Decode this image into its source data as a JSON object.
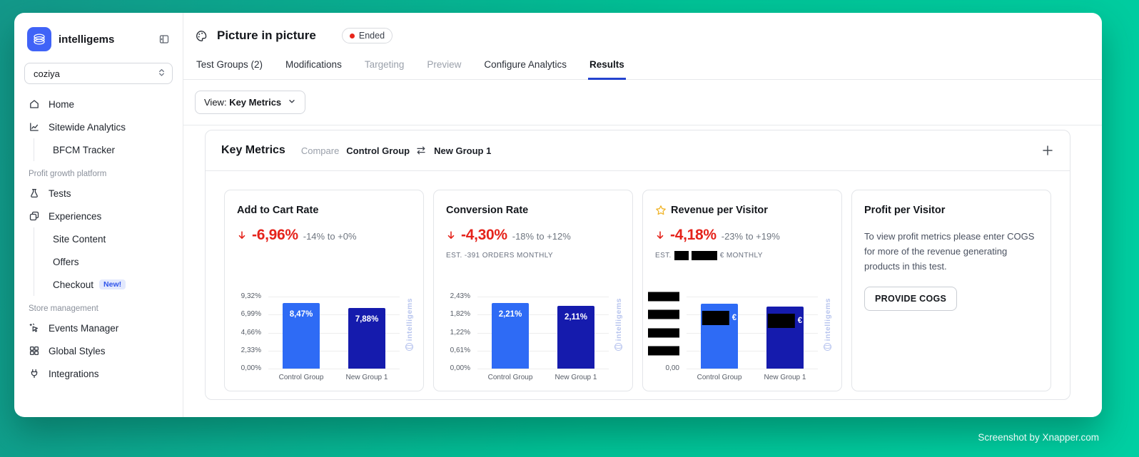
{
  "sidebar": {
    "brand": "intelligems",
    "logo_icon": "intelligems-gem-icon",
    "collapse_icon": "panel-collapse-icon",
    "store_selector": {
      "value": "coziya",
      "icon": "updown-chevron-icon"
    },
    "section_labels": {
      "profit": "Profit growth platform",
      "store": "Store management"
    },
    "nav": [
      {
        "label": "Home",
        "icon": "home-icon"
      },
      {
        "label": "Sitewide Analytics",
        "icon": "analytics-icon"
      },
      {
        "label": "BFCM Tracker"
      },
      {
        "label": "Tests",
        "icon": "flask-icon"
      },
      {
        "label": "Experiences",
        "icon": "devices-icon"
      },
      {
        "label": "Site Content"
      },
      {
        "label": "Offers"
      },
      {
        "label": "Checkout",
        "badge": "New!"
      },
      {
        "label": "Events Manager",
        "icon": "magic-cursor-icon"
      },
      {
        "label": "Global Styles",
        "icon": "grid-icon"
      },
      {
        "label": "Integrations",
        "icon": "plug-icon"
      }
    ]
  },
  "header": {
    "title": "Picture in picture",
    "icon": "palette-icon",
    "status_badge": "Ended"
  },
  "tabs": [
    {
      "label": "Test Groups (2)",
      "muted": false,
      "active": false
    },
    {
      "label": "Modifications",
      "muted": false,
      "active": false
    },
    {
      "label": "Targeting",
      "muted": true,
      "active": false
    },
    {
      "label": "Preview",
      "muted": true,
      "active": false
    },
    {
      "label": "Configure Analytics",
      "muted": false,
      "active": false
    },
    {
      "label": "Results",
      "muted": false,
      "active": true
    }
  ],
  "toolbar": {
    "view_label": "View:",
    "view_value": "Key Metrics",
    "icon": "chevron-down-icon"
  },
  "panel": {
    "title": "Key Metrics",
    "compare_label": "Compare",
    "group_a": "Control Group",
    "group_b": "New Group 1",
    "swap_icon": "swap-arrows-icon",
    "add_icon": "plus-icon"
  },
  "cards": [
    {
      "title": "Add to Cart Rate",
      "delta": "-6,96%",
      "range": "-14% to +0%",
      "est": ""
    },
    {
      "title": "Conversion Rate",
      "delta": "-4,30%",
      "range": "-18% to +12%",
      "est": "EST. -391 ORDERS MONTHLY"
    },
    {
      "title": "Revenue per Visitor",
      "delta": "-4,18%",
      "range": "-23% to +19%",
      "starred": true,
      "est_prefix": "EST.",
      "est_suffix": "€ MONTHLY",
      "est_redacted": true
    },
    {
      "title": "Profit per Visitor",
      "body": "To view profit metrics please enter COGS for more of the revenue generating products in this test.",
      "button_label": "PROVIDE COGS"
    }
  ],
  "chart_data": [
    {
      "type": "bar",
      "title": "Add to Cart Rate",
      "categories": [
        "Control Group",
        "New Group 1"
      ],
      "values": [
        8.47,
        7.88
      ],
      "bar_labels": [
        "8,47%",
        "7,88%"
      ],
      "yticks": [
        "9,32%",
        "6,99%",
        "4,66%",
        "2,33%",
        "0,00%"
      ],
      "ylim": [
        0,
        9.32
      ],
      "ylabel": "",
      "xlabel": "",
      "grid": true,
      "legend": false,
      "bar_colors": [
        "#2e6bf5",
        "#151bad"
      ],
      "watermark": "intelligems"
    },
    {
      "type": "bar",
      "title": "Conversion Rate",
      "categories": [
        "Control Group",
        "New Group 1"
      ],
      "values": [
        2.21,
        2.11
      ],
      "bar_labels": [
        "2,21%",
        "2,11%"
      ],
      "yticks": [
        "2,43%",
        "1,82%",
        "1,22%",
        "0,61%",
        "0,00%"
      ],
      "ylim": [
        0,
        2.43
      ],
      "ylabel": "",
      "xlabel": "",
      "grid": true,
      "legend": false,
      "bar_colors": [
        "#2e6bf5",
        "#151bad"
      ],
      "watermark": "intelligems"
    },
    {
      "type": "bar",
      "title": "Revenue per Visitor",
      "categories": [
        "Control Group",
        "New Group 1"
      ],
      "values": [
        0.9,
        0.86
      ],
      "values_redacted": true,
      "bar_labels_redacted": true,
      "bar_label_suffix": "€",
      "yticks": [
        "",
        "",
        "",
        "",
        "0,00"
      ],
      "yticks_redacted": true,
      "ylim": [
        0,
        1
      ],
      "ylabel": "",
      "xlabel": "",
      "grid": true,
      "legend": false,
      "bar_colors": [
        "#2e6bf5",
        "#151bad"
      ],
      "watermark": "intelligems"
    }
  ],
  "credit": "Screenshot by Xnapper.com"
}
